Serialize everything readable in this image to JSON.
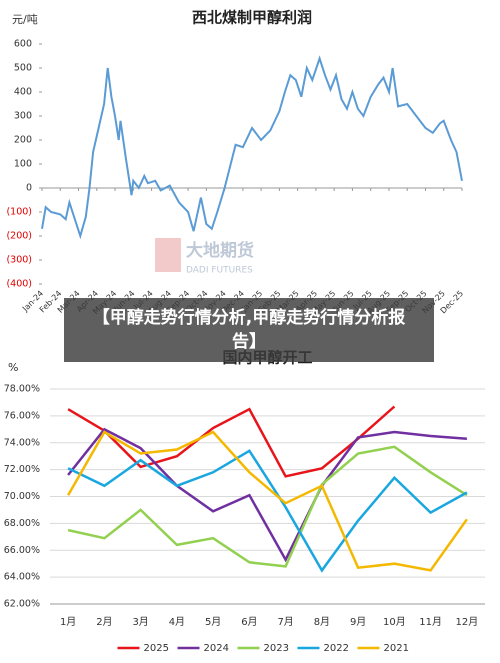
{
  "chart_data": [
    {
      "type": "line",
      "title": "西北煤制甲醇利润",
      "ylabel": "元/吨",
      "color": "#5b9bd5",
      "negative_tick_color": "#e00000",
      "x": [
        0,
        0.2,
        0.5,
        1.0,
        1.3,
        1.5,
        2.1,
        2.4,
        2.6,
        2.8,
        3.1,
        3.4,
        3.6,
        3.8,
        4.0,
        4.2,
        4.3,
        4.6,
        4.8,
        4.9,
        5.0,
        5.3,
        5.6,
        5.8,
        6.2,
        6.5,
        7.0,
        7.5,
        8.0,
        8.3,
        8.7,
        9.0,
        9.3,
        9.6,
        10.0,
        10.3,
        10.6,
        11.0,
        11.5,
        12.0,
        12.5,
        13.0,
        13.3,
        13.6,
        13.9,
        14.2,
        14.5,
        14.8,
        15.2,
        15.5,
        15.8,
        16.1,
        16.4,
        16.7,
        17.0,
        17.3,
        17.6,
        18.0,
        18.4,
        18.7,
        19.0,
        19.2,
        19.5,
        20.0,
        20.5,
        21.0,
        21.4,
        21.8,
        22.0,
        22.4,
        22.7,
        23.0
      ],
      "values": [
        -170,
        -80,
        -100,
        -110,
        -130,
        -60,
        -200,
        -120,
        0,
        150,
        250,
        350,
        500,
        380,
        300,
        200,
        280,
        120,
        20,
        -30,
        30,
        0,
        50,
        20,
        30,
        -10,
        10,
        -60,
        -100,
        -180,
        -40,
        -150,
        -170,
        -100,
        0,
        90,
        180,
        170,
        250,
        200,
        240,
        320,
        400,
        470,
        450,
        380,
        500,
        450,
        540,
        470,
        410,
        470,
        370,
        330,
        400,
        330,
        300,
        380,
        430,
        460,
        400,
        500,
        340,
        350,
        300,
        250,
        230,
        270,
        280,
        200,
        150,
        30
      ],
      "xlim": [
        0,
        23
      ],
      "xticks": [
        {
          "value": 0,
          "label": "Jan-24"
        },
        {
          "value": 1,
          "label": "Feb-24"
        },
        {
          "value": 2,
          "label": "Mar-24"
        },
        {
          "value": 3,
          "label": "Apr-24"
        },
        {
          "value": 4,
          "label": "May-24"
        },
        {
          "value": 5,
          "label": "Jun-24"
        },
        {
          "value": 6,
          "label": "Jul-24"
        },
        {
          "value": 7,
          "label": "Aug-24"
        },
        {
          "value": 8,
          "label": "Sep-24"
        },
        {
          "value": 9,
          "label": "Oct-24"
        },
        {
          "value": 10,
          "label": "Nov-24"
        },
        {
          "value": 11,
          "label": "Dec-24"
        },
        {
          "value": 12,
          "label": "Jan-25"
        },
        {
          "value": 13,
          "label": "Feb-25"
        },
        {
          "value": 14,
          "label": "Mar-25"
        },
        {
          "value": 15,
          "label": "Apr-25"
        },
        {
          "value": 16,
          "label": "May-25"
        },
        {
          "value": 17,
          "label": "Jun-25"
        },
        {
          "value": 18,
          "label": "Jul-25"
        },
        {
          "value": 19,
          "label": "Aug-25"
        },
        {
          "value": 20,
          "label": "Sep-25"
        },
        {
          "value": 21,
          "label": "Oct-25"
        },
        {
          "value": 22,
          "label": "Nov-25"
        },
        {
          "value": 23,
          "label": "Dec-25"
        }
      ],
      "ylim": [
        -400,
        600
      ],
      "yticks": [
        600,
        500,
        400,
        300,
        200,
        100,
        0,
        {
          "value": -100,
          "label": "(100)"
        },
        {
          "value": -200,
          "label": "(200)"
        },
        {
          "value": -300,
          "label": "(300)"
        },
        {
          "value": -400,
          "label": "(400)"
        }
      ],
      "grid": false
    },
    {
      "type": "line",
      "title": "国内甲醇开工",
      "ylabel": "%",
      "categories": [
        "1月",
        "2月",
        "3月",
        "4月",
        "5月",
        "6月",
        "7月",
        "8月",
        "9月",
        "10月",
        "11月",
        "12月"
      ],
      "series": [
        {
          "name": "2025",
          "color": "#e8141b",
          "values": [
            76.5,
            74.9,
            72.2,
            73.0,
            75.1,
            76.5,
            71.5,
            72.1,
            74.3,
            76.7,
            null,
            null
          ]
        },
        {
          "name": "2024",
          "color": "#7030a0",
          "values": [
            71.6,
            75.0,
            73.6,
            70.8,
            68.9,
            70.1,
            65.3,
            70.8,
            74.4,
            74.8,
            74.5,
            74.3
          ]
        },
        {
          "name": "2023",
          "color": "#92d050",
          "values": [
            67.5,
            66.9,
            69.0,
            66.4,
            66.9,
            65.1,
            64.8,
            70.9,
            73.2,
            73.7,
            71.8,
            70.1
          ]
        },
        {
          "name": "2022",
          "color": "#1aa7e0",
          "values": [
            72.1,
            70.8,
            72.7,
            70.8,
            71.8,
            73.4,
            69.2,
            64.5,
            68.2,
            71.4,
            68.8,
            70.3
          ]
        },
        {
          "name": "2021",
          "color": "#f5b800",
          "values": [
            70.1,
            74.8,
            73.2,
            73.5,
            74.8,
            71.8,
            69.5,
            70.8,
            64.7,
            65.0,
            64.5,
            68.3
          ]
        }
      ],
      "ylim": [
        62,
        78
      ],
      "yticks": [
        {
          "value": 78,
          "label": "78.00%"
        },
        {
          "value": 76,
          "label": "76.00%"
        },
        {
          "value": 74,
          "label": "74.00%"
        },
        {
          "value": 72,
          "label": "72.00%"
        },
        {
          "value": 70,
          "label": "70.00%"
        },
        {
          "value": 68,
          "label": "68.00%"
        },
        {
          "value": 66,
          "label": "66.00%"
        },
        {
          "value": 64,
          "label": "64.00%"
        },
        {
          "value": 62,
          "label": "62.00%"
        }
      ],
      "grid": true,
      "legend": "bottom"
    }
  ],
  "watermark": {
    "name": "大地期货",
    "sub": "DADI FUTURES"
  },
  "banner": "【甲醇走势行情分析,甲醇走势行情分析报告】"
}
